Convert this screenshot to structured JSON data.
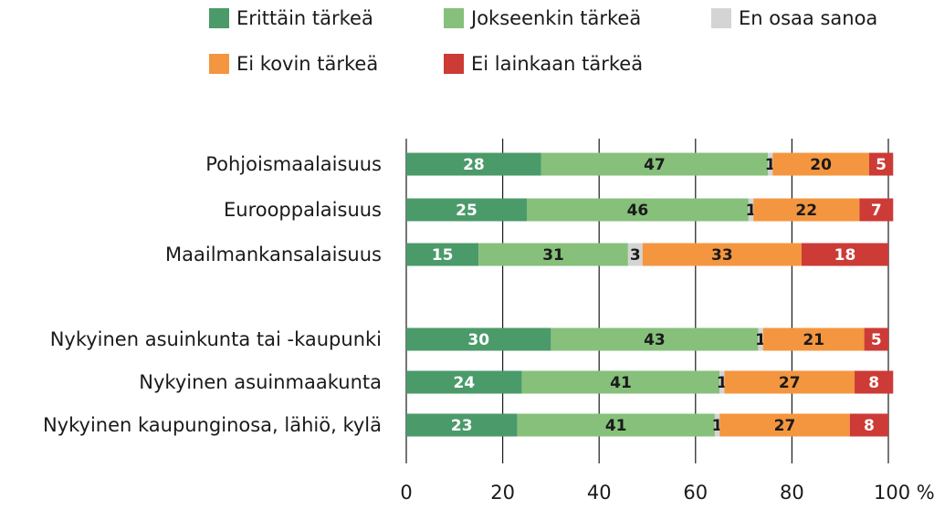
{
  "chart_data": {
    "type": "bar",
    "orientation": "horizontal",
    "stacked": true,
    "categories": [
      "Pohjoismaalaisuus",
      "Eurooppalaisuus",
      "Maailmankansalaisuus",
      "Nykyinen asuinkunta tai -kaupunki",
      "Nykyinen asuinmaakunta",
      "Nykyinen kaupunginosa, lähiö, kylä"
    ],
    "group_break_after": 2,
    "series": [
      {
        "name": "Erittäin tärkeä",
        "color": "#4b9a6a",
        "label_color": "#ffffff",
        "values": [
          28,
          25,
          15,
          30,
          24,
          23
        ]
      },
      {
        "name": "Jokseenkin tärkeä",
        "color": "#86c07b",
        "label_color": "#1a1a1a",
        "values": [
          47,
          46,
          31,
          43,
          41,
          41
        ]
      },
      {
        "name": "En osaa sanoa",
        "color": "#d4d4d4",
        "label_color": "#1a1a1a",
        "values": [
          1,
          1,
          3,
          1,
          1,
          1
        ]
      },
      {
        "name": "Ei kovin tärkeä",
        "color": "#f4963f",
        "label_color": "#1a1a1a",
        "values": [
          20,
          22,
          33,
          21,
          27,
          27
        ]
      },
      {
        "name": "Ei lainkaan tärkeä",
        "color": "#cc3b36",
        "label_color": "#ffffff",
        "values": [
          5,
          7,
          18,
          5,
          8,
          8
        ]
      }
    ],
    "xlim": [
      0,
      100
    ],
    "x_ticks": [
      "0",
      "20",
      "40",
      "60",
      "80",
      "100 %"
    ],
    "grid": true,
    "legend_position": "top"
  }
}
